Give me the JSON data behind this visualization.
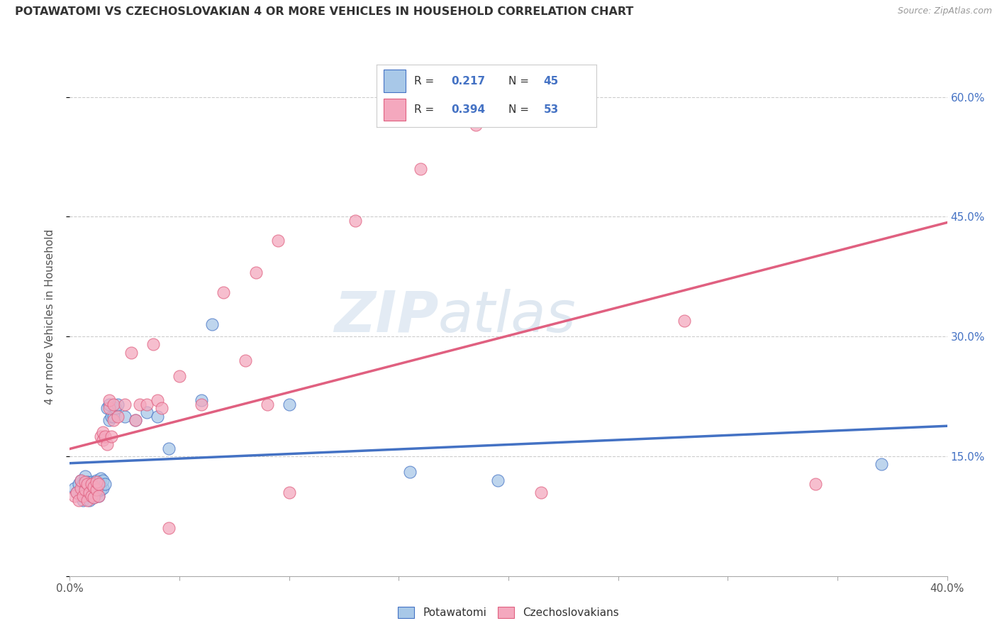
{
  "title": "POTAWATOMI VS CZECHOSLOVAKIAN 4 OR MORE VEHICLES IN HOUSEHOLD CORRELATION CHART",
  "source": "Source: ZipAtlas.com",
  "ylabel": "4 or more Vehicles in Household",
  "xlim": [
    0.0,
    0.4
  ],
  "ylim": [
    0.0,
    0.65
  ],
  "x_ticks": [
    0.0,
    0.05,
    0.1,
    0.15,
    0.2,
    0.25,
    0.3,
    0.35,
    0.4
  ],
  "y_ticks": [
    0.0,
    0.15,
    0.3,
    0.45,
    0.6
  ],
  "y_tick_labels_right": [
    "",
    "15.0%",
    "30.0%",
    "45.0%",
    "60.0%"
  ],
  "color_blue": "#a8c8e8",
  "color_pink": "#f4a8be",
  "color_blue_dark": "#4472c4",
  "color_pink_dark": "#e06080",
  "watermark_zip": "ZIP",
  "watermark_atlas": "atlas",
  "blue_scatter_x": [
    0.002,
    0.003,
    0.004,
    0.005,
    0.005,
    0.006,
    0.006,
    0.007,
    0.007,
    0.008,
    0.008,
    0.009,
    0.009,
    0.01,
    0.01,
    0.01,
    0.011,
    0.011,
    0.012,
    0.012,
    0.013,
    0.013,
    0.014,
    0.014,
    0.015,
    0.015,
    0.016,
    0.017,
    0.018,
    0.018,
    0.019,
    0.02,
    0.021,
    0.022,
    0.025,
    0.03,
    0.035,
    0.04,
    0.045,
    0.06,
    0.065,
    0.1,
    0.155,
    0.195,
    0.37
  ],
  "blue_scatter_y": [
    0.11,
    0.105,
    0.115,
    0.1,
    0.12,
    0.095,
    0.115,
    0.11,
    0.125,
    0.108,
    0.118,
    0.095,
    0.112,
    0.1,
    0.112,
    0.118,
    0.098,
    0.115,
    0.105,
    0.12,
    0.1,
    0.118,
    0.108,
    0.122,
    0.11,
    0.12,
    0.115,
    0.21,
    0.195,
    0.215,
    0.2,
    0.2,
    0.21,
    0.215,
    0.2,
    0.195,
    0.205,
    0.2,
    0.16,
    0.22,
    0.315,
    0.215,
    0.13,
    0.12,
    0.14
  ],
  "pink_scatter_x": [
    0.002,
    0.003,
    0.004,
    0.005,
    0.005,
    0.006,
    0.007,
    0.007,
    0.008,
    0.008,
    0.009,
    0.01,
    0.01,
    0.011,
    0.011,
    0.012,
    0.012,
    0.013,
    0.013,
    0.014,
    0.015,
    0.015,
    0.016,
    0.017,
    0.018,
    0.018,
    0.019,
    0.02,
    0.02,
    0.022,
    0.025,
    0.028,
    0.03,
    0.032,
    0.035,
    0.038,
    0.04,
    0.042,
    0.045,
    0.05,
    0.06,
    0.07,
    0.08,
    0.085,
    0.09,
    0.095,
    0.1,
    0.13,
    0.16,
    0.185,
    0.215,
    0.28,
    0.34
  ],
  "pink_scatter_y": [
    0.1,
    0.105,
    0.095,
    0.11,
    0.12,
    0.1,
    0.108,
    0.118,
    0.095,
    0.115,
    0.105,
    0.1,
    0.115,
    0.098,
    0.112,
    0.108,
    0.118,
    0.1,
    0.115,
    0.175,
    0.17,
    0.18,
    0.175,
    0.165,
    0.21,
    0.22,
    0.175,
    0.195,
    0.215,
    0.2,
    0.215,
    0.28,
    0.195,
    0.215,
    0.215,
    0.29,
    0.22,
    0.21,
    0.06,
    0.25,
    0.215,
    0.355,
    0.27,
    0.38,
    0.215,
    0.42,
    0.105,
    0.445,
    0.51,
    0.565,
    0.105,
    0.32,
    0.115
  ]
}
